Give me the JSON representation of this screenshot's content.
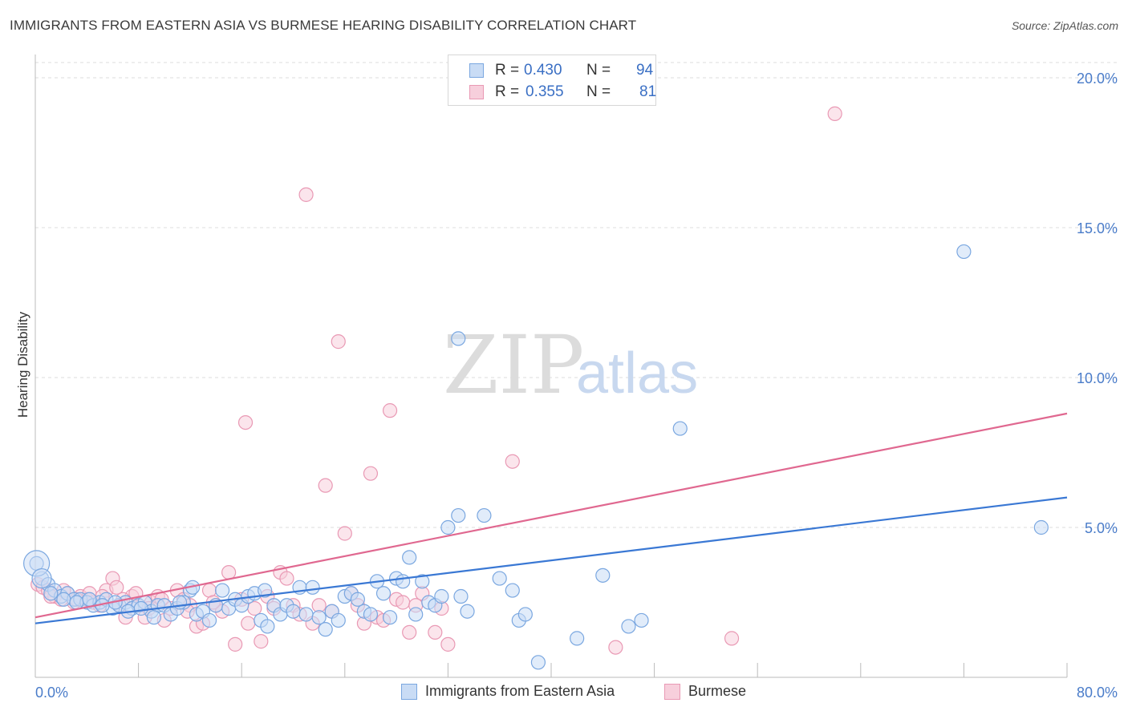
{
  "title": "IMMIGRANTS FROM EASTERN ASIA VS BURMESE HEARING DISABILITY CORRELATION CHART",
  "source": "Source: ZipAtlas.com",
  "watermark": {
    "zip": "ZIP",
    "atlas": "atlas"
  },
  "legend": {
    "r_label": "R =",
    "n_label": "N =",
    "items": [
      {
        "r": "0.430",
        "n": "94"
      },
      {
        "r": "0.355",
        "n": "81"
      }
    ]
  },
  "chart_data": {
    "type": "scatter",
    "title": "IMMIGRANTS FROM EASTERN ASIA VS BURMESE HEARING DISABILITY CORRELATION CHART",
    "xlabel": "",
    "ylabel": "Hearing Disability",
    "xlim": [
      0,
      80
    ],
    "ylim": [
      0,
      20
    ],
    "x_tick_labels": [
      "0.0%",
      "80.0%"
    ],
    "y_ticks": [
      5,
      10,
      15,
      20
    ],
    "y_tick_labels": [
      "5.0%",
      "10.0%",
      "15.0%",
      "20.0%"
    ],
    "grid": "horizontal dashed",
    "legend_placement": "top-center",
    "series": [
      {
        "name": "Immigrants from Eastern Asia",
        "color": "#7aa7e0",
        "fill": "#c9dcf5",
        "line_color": "#3a78d4",
        "trend": [
          [
            0,
            1.8
          ],
          [
            80,
            6.0
          ]
        ],
        "points": [
          [
            0.1,
            3.8
          ],
          [
            0.5,
            3.3
          ],
          [
            1.0,
            3.1
          ],
          [
            1.5,
            2.9
          ],
          [
            2.0,
            2.7
          ],
          [
            2.5,
            2.8
          ],
          [
            3.0,
            2.6
          ],
          [
            3.5,
            2.6
          ],
          [
            4.0,
            2.5
          ],
          [
            4.5,
            2.4
          ],
          [
            5.0,
            2.5
          ],
          [
            5.5,
            2.6
          ],
          [
            6.0,
            2.3
          ],
          [
            6.5,
            2.4
          ],
          [
            7.0,
            2.5
          ],
          [
            7.5,
            2.3
          ],
          [
            8.0,
            2.4
          ],
          [
            8.5,
            2.5
          ],
          [
            9.0,
            2.2
          ],
          [
            9.5,
            2.4
          ],
          [
            10.0,
            2.4
          ],
          [
            10.5,
            2.1
          ],
          [
            11.0,
            2.3
          ],
          [
            11.5,
            2.5
          ],
          [
            12.0,
            2.9
          ],
          [
            12.2,
            3.0
          ],
          [
            12.5,
            2.1
          ],
          [
            13.0,
            2.2
          ],
          [
            13.5,
            1.9
          ],
          [
            14.0,
            2.4
          ],
          [
            14.5,
            2.9
          ],
          [
            15.0,
            2.3
          ],
          [
            15.5,
            2.6
          ],
          [
            16.0,
            2.4
          ],
          [
            16.5,
            2.7
          ],
          [
            17.0,
            2.8
          ],
          [
            17.5,
            1.9
          ],
          [
            17.8,
            2.9
          ],
          [
            18.0,
            1.7
          ],
          [
            18.5,
            2.4
          ],
          [
            19.0,
            2.1
          ],
          [
            19.5,
            2.4
          ],
          [
            20.0,
            2.2
          ],
          [
            20.5,
            3.0
          ],
          [
            21.0,
            2.1
          ],
          [
            21.5,
            3.0
          ],
          [
            22.0,
            2.0
          ],
          [
            22.5,
            1.6
          ],
          [
            23.0,
            2.2
          ],
          [
            23.5,
            1.9
          ],
          [
            24.0,
            2.7
          ],
          [
            24.5,
            2.8
          ],
          [
            25.0,
            2.6
          ],
          [
            25.5,
            2.2
          ],
          [
            26.0,
            2.1
          ],
          [
            26.5,
            3.2
          ],
          [
            27.0,
            2.8
          ],
          [
            27.5,
            2.0
          ],
          [
            28.0,
            3.3
          ],
          [
            28.5,
            3.2
          ],
          [
            29.0,
            4.0
          ],
          [
            29.5,
            2.1
          ],
          [
            30.0,
            3.2
          ],
          [
            30.5,
            2.5
          ],
          [
            31.0,
            2.4
          ],
          [
            31.5,
            2.7
          ],
          [
            32.0,
            5.0
          ],
          [
            32.8,
            5.4
          ],
          [
            32.8,
            11.3
          ],
          [
            33.0,
            2.7
          ],
          [
            33.5,
            2.2
          ],
          [
            34.8,
            5.4
          ],
          [
            36.0,
            3.3
          ],
          [
            37.0,
            2.9
          ],
          [
            37.5,
            1.9
          ],
          [
            38.0,
            2.1
          ],
          [
            39.0,
            0.5
          ],
          [
            42.0,
            1.3
          ],
          [
            44.0,
            3.4
          ],
          [
            46.0,
            1.7
          ],
          [
            47.0,
            1.9
          ],
          [
            50.0,
            8.3
          ],
          [
            72.0,
            14.2
          ],
          [
            78.0,
            5.0
          ],
          [
            1.2,
            2.8
          ],
          [
            2.2,
            2.6
          ],
          [
            3.2,
            2.5
          ],
          [
            4.2,
            2.6
          ],
          [
            5.2,
            2.4
          ],
          [
            6.2,
            2.5
          ],
          [
            7.2,
            2.2
          ],
          [
            8.2,
            2.3
          ],
          [
            9.2,
            2.0
          ],
          [
            11.2,
            2.5
          ]
        ]
      },
      {
        "name": "Burmese",
        "color": "#e999b4",
        "fill": "#f7cfdc",
        "line_color": "#e06890",
        "trend": [
          [
            0,
            2.0
          ],
          [
            80,
            8.8
          ]
        ],
        "points": [
          [
            0.2,
            3.1
          ],
          [
            0.6,
            3.0
          ],
          [
            1.0,
            2.9
          ],
          [
            1.5,
            2.7
          ],
          [
            2.0,
            2.6
          ],
          [
            2.5,
            2.8
          ],
          [
            3.0,
            2.5
          ],
          [
            3.5,
            2.7
          ],
          [
            4.0,
            2.6
          ],
          [
            4.5,
            2.5
          ],
          [
            5.0,
            2.4
          ],
          [
            5.5,
            2.9
          ],
          [
            6.0,
            3.3
          ],
          [
            6.3,
            3.0
          ],
          [
            6.5,
            2.4
          ],
          [
            7.0,
            2.0
          ],
          [
            7.5,
            2.7
          ],
          [
            8.0,
            2.4
          ],
          [
            8.5,
            2.0
          ],
          [
            9.0,
            2.5
          ],
          [
            9.5,
            2.7
          ],
          [
            10.0,
            1.9
          ],
          [
            10.5,
            2.3
          ],
          [
            11.0,
            2.9
          ],
          [
            11.5,
            2.6
          ],
          [
            12.0,
            2.4
          ],
          [
            12.5,
            1.7
          ],
          [
            13.0,
            1.8
          ],
          [
            13.5,
            2.9
          ],
          [
            14.0,
            2.4
          ],
          [
            14.5,
            2.2
          ],
          [
            15.0,
            3.5
          ],
          [
            15.5,
            1.1
          ],
          [
            16.0,
            2.6
          ],
          [
            16.3,
            8.5
          ],
          [
            16.5,
            1.8
          ],
          [
            17.0,
            2.3
          ],
          [
            17.5,
            1.2
          ],
          [
            18.0,
            2.7
          ],
          [
            18.5,
            2.3
          ],
          [
            19.0,
            3.5
          ],
          [
            19.5,
            3.3
          ],
          [
            20.0,
            2.4
          ],
          [
            20.5,
            2.1
          ],
          [
            21.0,
            16.1
          ],
          [
            21.5,
            1.8
          ],
          [
            22.0,
            2.4
          ],
          [
            22.5,
            6.4
          ],
          [
            23.0,
            2.2
          ],
          [
            23.5,
            11.2
          ],
          [
            24.0,
            4.8
          ],
          [
            24.5,
            2.8
          ],
          [
            25.0,
            2.4
          ],
          [
            25.5,
            1.8
          ],
          [
            26.0,
            6.8
          ],
          [
            26.5,
            2.0
          ],
          [
            27.0,
            1.9
          ],
          [
            27.5,
            8.9
          ],
          [
            28.0,
            2.6
          ],
          [
            28.5,
            2.5
          ],
          [
            29.0,
            1.5
          ],
          [
            29.5,
            2.4
          ],
          [
            30.0,
            2.8
          ],
          [
            31.0,
            1.5
          ],
          [
            31.5,
            2.3
          ],
          [
            32.0,
            1.1
          ],
          [
            37.0,
            7.2
          ],
          [
            45.0,
            1.0
          ],
          [
            54.0,
            1.3
          ],
          [
            62.0,
            18.8
          ],
          [
            1.2,
            2.7
          ],
          [
            2.2,
            2.9
          ],
          [
            3.2,
            2.6
          ],
          [
            4.2,
            2.8
          ],
          [
            5.2,
            2.7
          ],
          [
            6.8,
            2.6
          ],
          [
            7.8,
            2.8
          ],
          [
            8.8,
            2.3
          ],
          [
            9.8,
            2.6
          ],
          [
            11.8,
            2.2
          ],
          [
            13.8,
            2.5
          ]
        ]
      }
    ]
  }
}
